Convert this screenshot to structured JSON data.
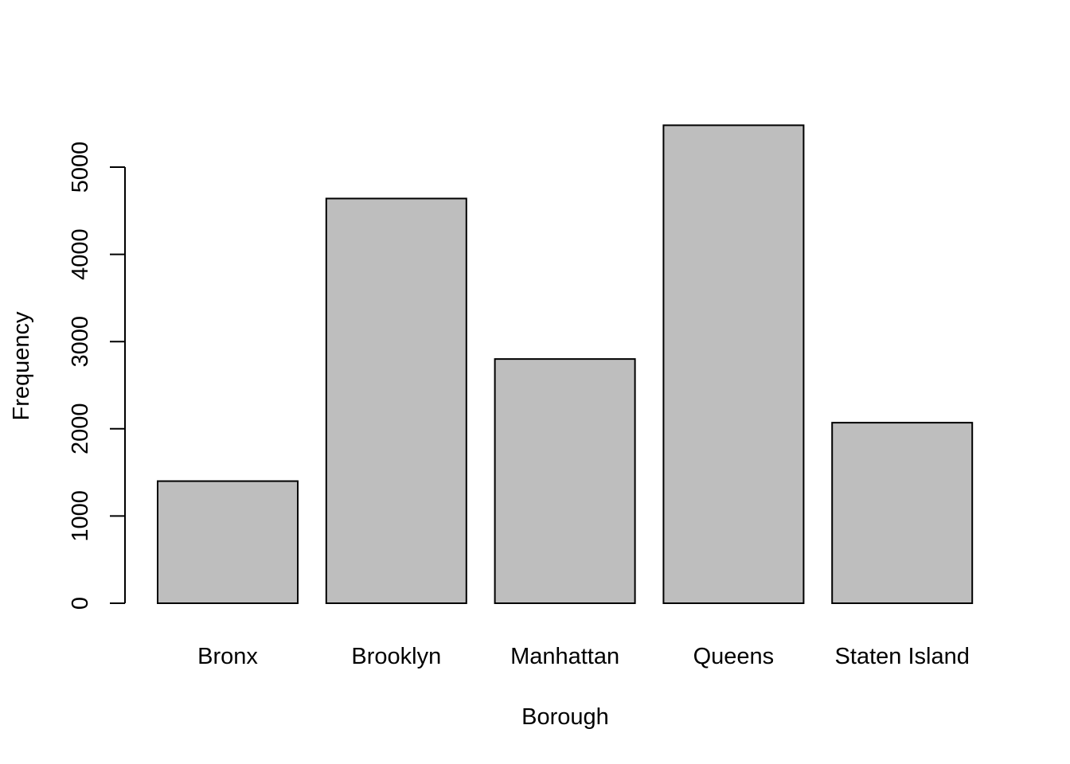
{
  "chart_data": {
    "type": "bar",
    "title": "",
    "xlabel": "Borough",
    "ylabel": "Frequency",
    "categories": [
      "Bronx",
      "Brooklyn",
      "Manhattan",
      "Queens",
      "Staten Island"
    ],
    "values": [
      1400,
      4640,
      2800,
      5480,
      2070
    ],
    "ylim": [
      0,
      5480
    ],
    "yticks": [
      0,
      1000,
      2000,
      3000,
      4000,
      5000
    ],
    "ytick_labels": [
      "0",
      "1000",
      "2000",
      "3000",
      "4000",
      "5000"
    ],
    "grid": false,
    "legend": "none",
    "bar_color": "#bebebe",
    "border_color": "#000000"
  }
}
